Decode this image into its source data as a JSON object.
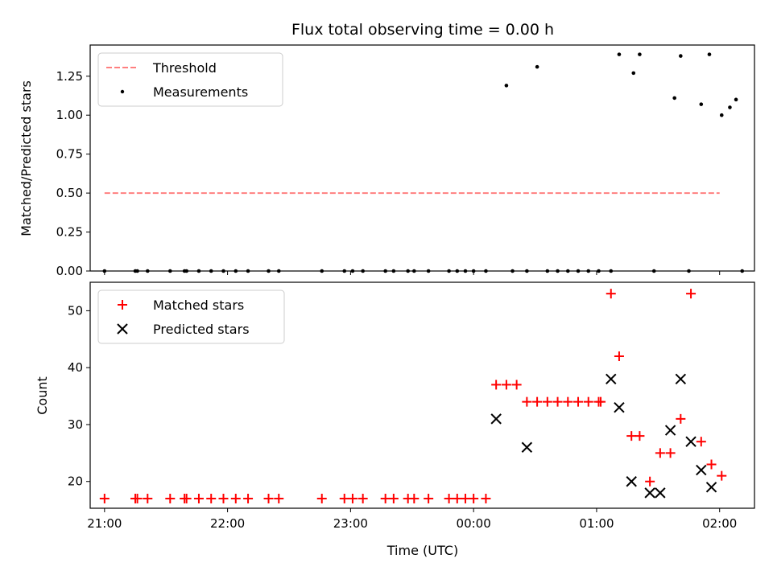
{
  "chart_data": [
    {
      "type": "scatter",
      "title": "Flux total observing time = 0.00 h",
      "xlabel": "",
      "ylabel": "Matched/Predicted stars",
      "xlim": [
        "20:53",
        "02:17"
      ],
      "ylim": [
        0,
        1.45
      ],
      "yticks": [
        "0.00",
        "0.25",
        "0.50",
        "0.75",
        "1.00",
        "1.25"
      ],
      "yticks_values": [
        0,
        0.25,
        0.5,
        0.75,
        1.0,
        1.25
      ],
      "x_tick_values": [
        "21:00",
        "22:00",
        "23:00",
        "00:00",
        "01:00",
        "02:00"
      ],
      "grid": false,
      "legend_position": "top-left",
      "series": [
        {
          "name": "Threshold",
          "style": "dashed-line",
          "color": "#ff7f7f",
          "x": [
            "21:00",
            "02:00"
          ],
          "y": [
            0.5,
            0.5
          ]
        },
        {
          "name": "Measurements",
          "style": "dot",
          "color": "#000000",
          "x": [
            "21:00",
            "21:15",
            "21:16",
            "21:21",
            "21:32",
            "21:39",
            "21:40",
            "21:46",
            "21:52",
            "21:58",
            "22:04",
            "22:10",
            "22:20",
            "22:25",
            "22:46",
            "22:57",
            "23:01",
            "23:06",
            "23:17",
            "23:21",
            "23:28",
            "23:31",
            "23:38",
            "23:48",
            "23:52",
            "23:56",
            "00:00",
            "00:06",
            "00:16",
            "00:19",
            "00:26",
            "00:31",
            "00:36",
            "00:41",
            "00:46",
            "00:51",
            "00:56",
            "01:01",
            "01:07",
            "01:11",
            "01:18",
            "01:21",
            "01:28",
            "01:38",
            "01:41",
            "01:45",
            "01:51",
            "01:55",
            "02:01",
            "02:05",
            "02:08",
            "02:11"
          ],
          "y": [
            0,
            0,
            0,
            0,
            0,
            0,
            0,
            0,
            0,
            0,
            0,
            0,
            0,
            0,
            0,
            0,
            0,
            0,
            0,
            0,
            0,
            0,
            0,
            0,
            0,
            0,
            0,
            0,
            1.19,
            0,
            0,
            1.31,
            0,
            0,
            0,
            0,
            0,
            0,
            0,
            1.39,
            1.27,
            1.39,
            0,
            1.11,
            1.38,
            0,
            1.07,
            1.39,
            1.0,
            1.05,
            1.1,
            0
          ]
        }
      ]
    },
    {
      "type": "scatter",
      "title": "",
      "xlabel": "Time (UTC)",
      "ylabel": "Count",
      "xlim": [
        "20:53",
        "02:17"
      ],
      "ylim": [
        15.3,
        55
      ],
      "yticks": [
        "20",
        "30",
        "40",
        "50"
      ],
      "yticks_values": [
        20,
        30,
        40,
        50
      ],
      "x_tick_values": [
        "21:00",
        "22:00",
        "23:00",
        "00:00",
        "01:00",
        "02:00"
      ],
      "xticks": [
        "21:00",
        "22:00",
        "23:00",
        "00:00",
        "01:00",
        "02:00"
      ],
      "grid": false,
      "legend_position": "top-left",
      "series": [
        {
          "name": "Matched stars",
          "marker": "plus",
          "color": "#ff0000",
          "x": [
            "21:00",
            "21:15",
            "21:16",
            "21:21",
            "21:32",
            "21:39",
            "21:40",
            "21:46",
            "21:52",
            "21:58",
            "22:04",
            "22:10",
            "22:20",
            "22:25",
            "22:46",
            "22:57",
            "23:01",
            "23:06",
            "23:17",
            "23:21",
            "23:28",
            "23:31",
            "23:38",
            "23:48",
            "23:52",
            "23:56",
            "00:00",
            "00:06",
            "00:11",
            "00:16",
            "00:21",
            "00:26",
            "00:31",
            "00:36",
            "00:41",
            "00:46",
            "00:51",
            "00:56",
            "01:01",
            "01:02",
            "01:07",
            "01:11",
            "01:17",
            "01:21",
            "01:26",
            "01:31",
            "01:36",
            "01:41",
            "01:46",
            "01:51",
            "01:56",
            "02:01"
          ],
          "y": [
            17,
            17,
            17,
            17,
            17,
            17,
            17,
            17,
            17,
            17,
            17,
            17,
            17,
            17,
            17,
            17,
            17,
            17,
            17,
            17,
            17,
            17,
            17,
            17,
            17,
            17,
            17,
            17,
            37,
            37,
            37,
            34,
            34,
            34,
            34,
            34,
            34,
            34,
            34,
            34,
            53,
            42,
            28,
            28,
            20,
            25,
            25,
            31,
            53,
            27,
            23,
            21
          ]
        },
        {
          "name": "Predicted stars",
          "marker": "x",
          "color": "#000000",
          "x": [
            "00:11",
            "00:26",
            "01:07",
            "01:11",
            "01:17",
            "01:26",
            "01:31",
            "01:36",
            "01:41",
            "01:46",
            "01:51",
            "01:56"
          ],
          "y": [
            31,
            26,
            38,
            33,
            20,
            18,
            18,
            29,
            38,
            27,
            22,
            19
          ]
        }
      ]
    }
  ]
}
